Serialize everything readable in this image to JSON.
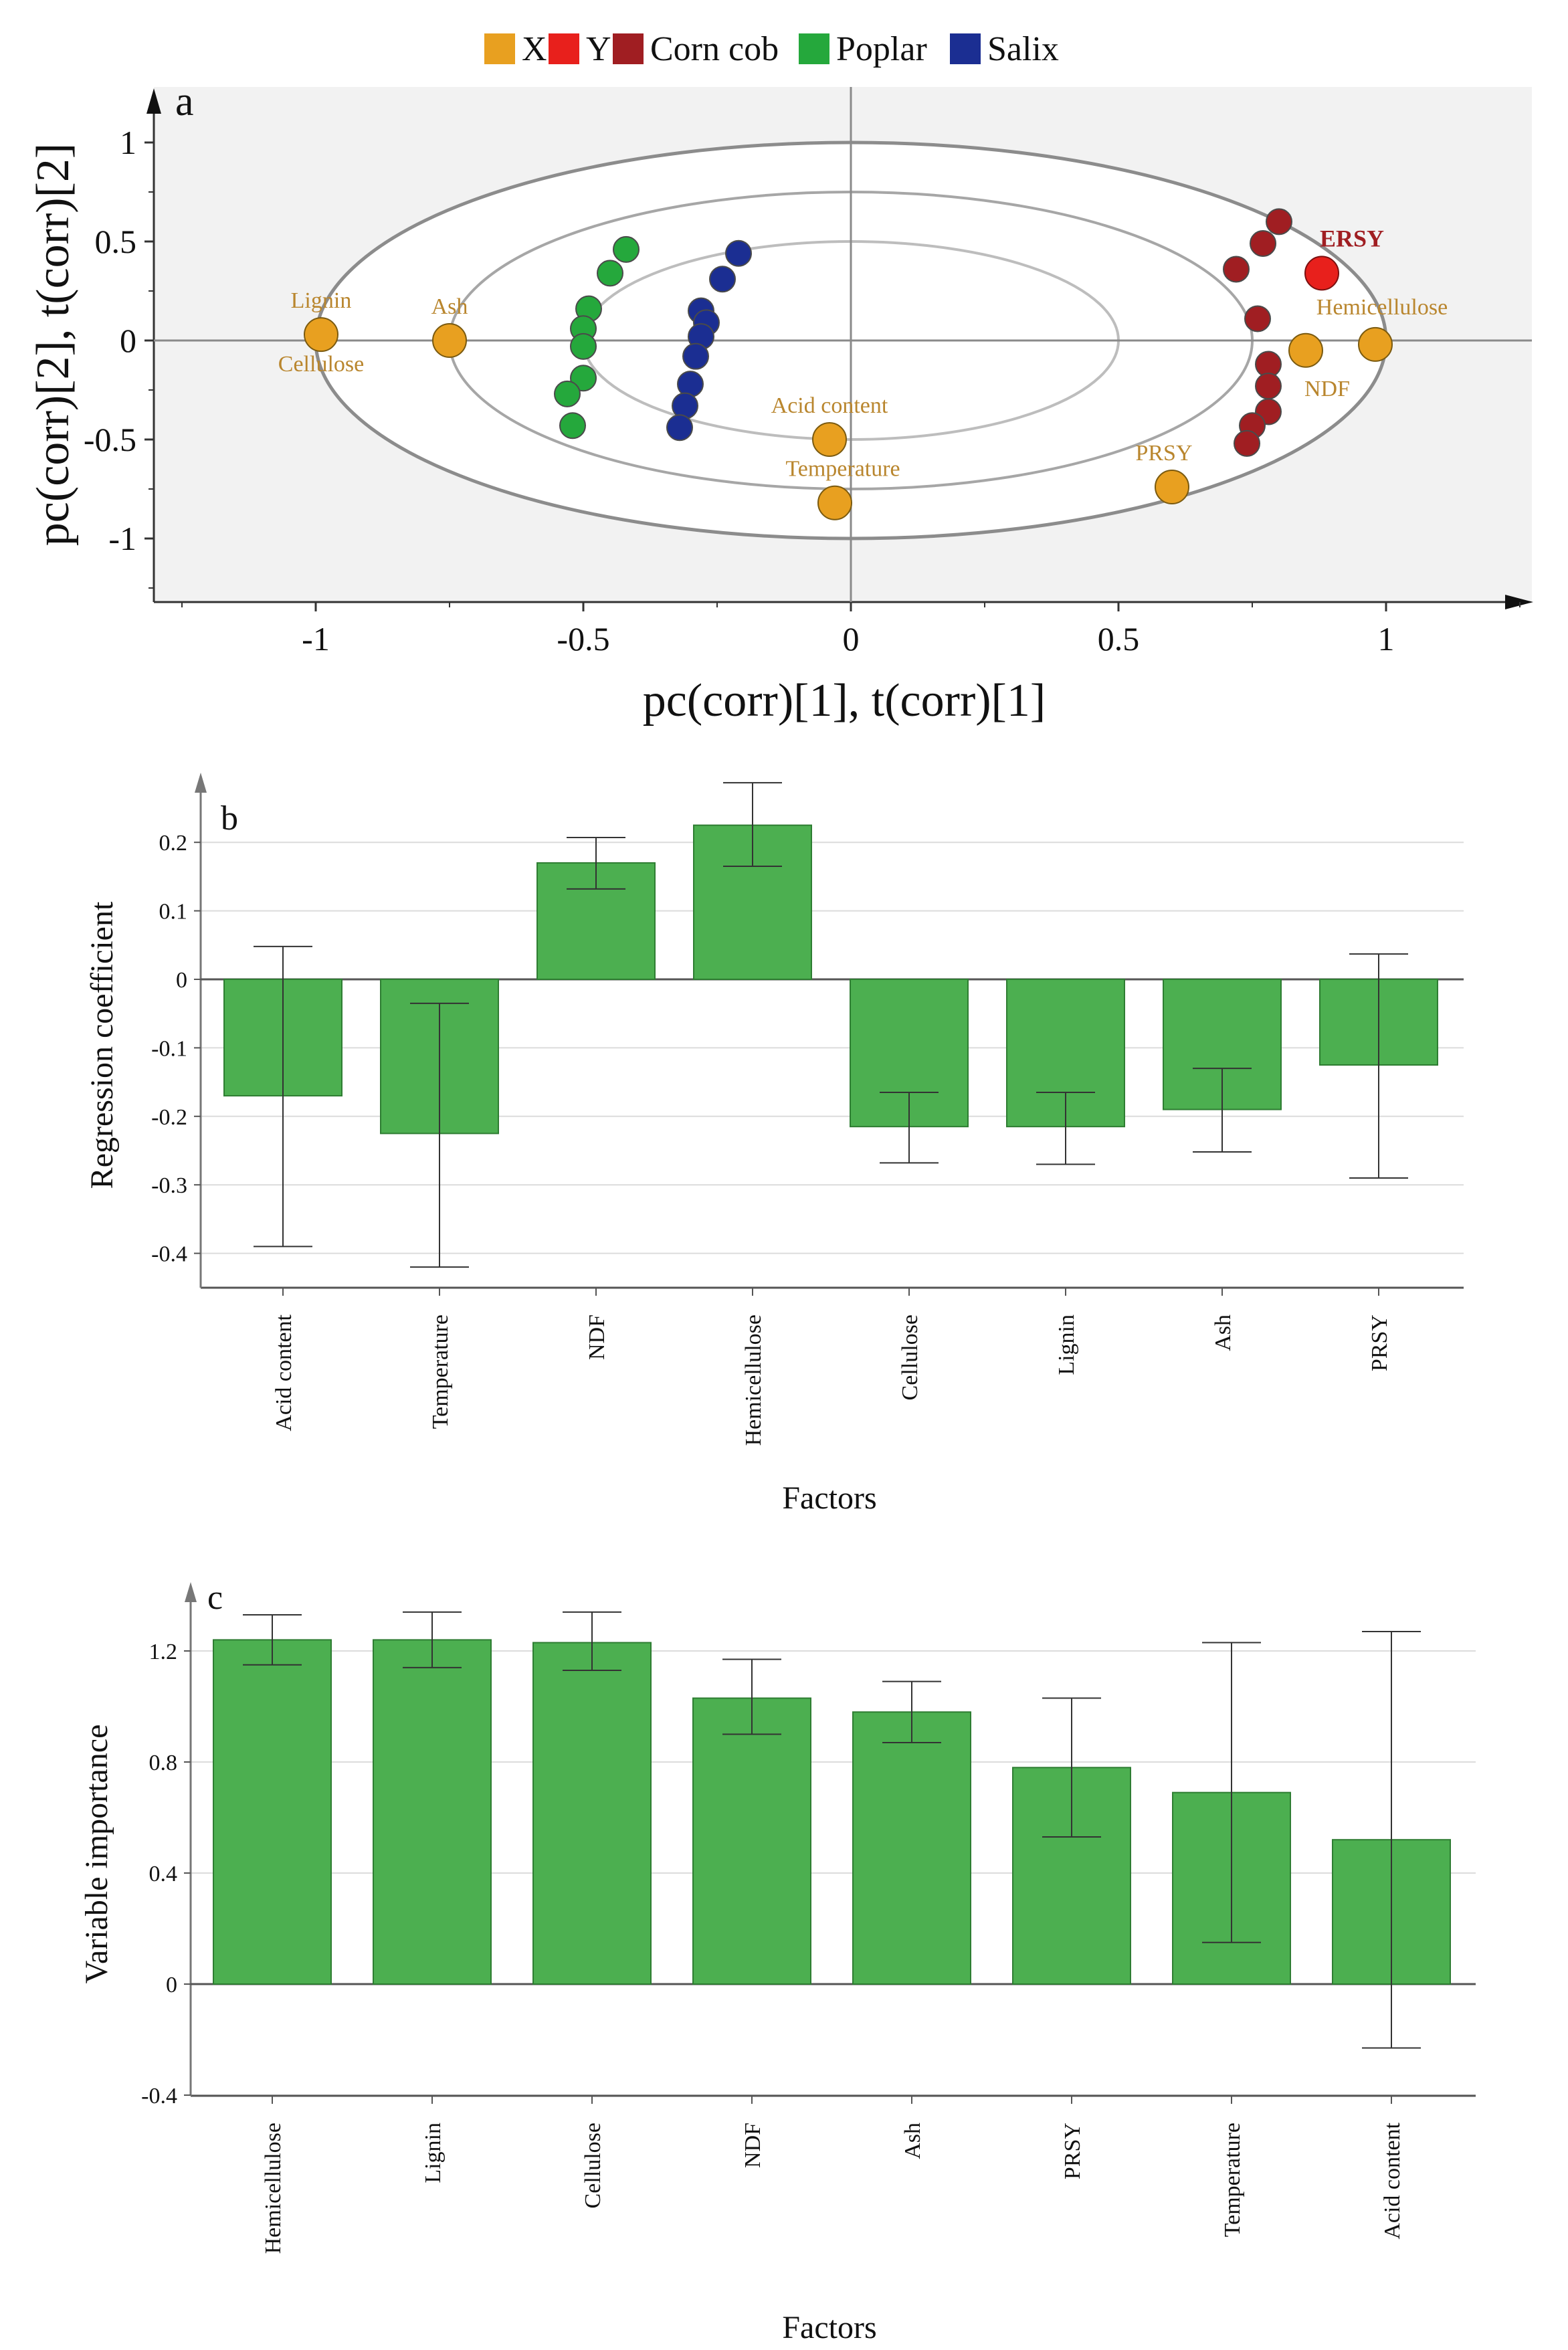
{
  "colors": {
    "X": "#E8A020",
    "Y": "#E8201C",
    "corn_cob": "#A01E22",
    "poplar": "#25A83C",
    "salix": "#1B2E92",
    "bar": "#4CAF50",
    "bar_edge": "#2E7D32",
    "label": "#B9862E",
    "ersy": "#A01E22",
    "panel_bg": "#F2F2F2"
  },
  "legend": [
    {
      "label": "X",
      "color_key": "X"
    },
    {
      "label": "Y",
      "color_key": "Y"
    },
    {
      "label": "Corn cob",
      "color_key": "corn_cob"
    },
    {
      "label": "Poplar",
      "color_key": "poplar"
    },
    {
      "label": "Salix",
      "color_key": "salix"
    }
  ],
  "chart_data": [
    {
      "type": "scatter",
      "panel_label": "a",
      "xlabel": "pc(corr)[1], t(corr)[1]",
      "ylabel": "pc(corr)[2], t(corr)[2]",
      "xlim": [
        -1.3,
        1.3
      ],
      "ylim": [
        -1.3,
        1.2
      ],
      "xticks": [
        -1,
        -0.5,
        0,
        0.5,
        1
      ],
      "xtick_labels": [
        "-1",
        "-0.5",
        "0",
        "0.5",
        "1"
      ],
      "yticks": [
        1,
        0.5,
        0,
        -0.5,
        -1
      ],
      "ytick_labels": [
        "1",
        "0.5",
        "0",
        "-0.5",
        "-1"
      ],
      "ellipses": [
        {
          "rx": 1.0,
          "ry": 1.0
        },
        {
          "rx": 0.75,
          "ry": 0.75
        },
        {
          "rx": 0.5,
          "ry": 0.5
        }
      ],
      "loadings": [
        {
          "name": "Lignin",
          "x": -0.99,
          "y": 0.03,
          "label": "Lignin",
          "label_pos": "above"
        },
        {
          "name": "Cellulose",
          "x": -0.99,
          "y": 0.03,
          "label": "Cellulose",
          "label_pos": "below"
        },
        {
          "name": "Ash",
          "x": -0.75,
          "y": 0.0,
          "label": "Ash",
          "label_pos": "above"
        },
        {
          "name": "Acid content",
          "x": -0.04,
          "y": -0.5,
          "label": "Acid content",
          "label_pos": "above"
        },
        {
          "name": "Temperature",
          "x": -0.03,
          "y": -0.82,
          "label": "Temperature",
          "label_pos": "above"
        },
        {
          "name": "PRSY",
          "x": 0.6,
          "y": -0.74,
          "label": "PRSY",
          "label_pos": "above-left"
        },
        {
          "name": "NDF",
          "x": 0.85,
          "y": -0.05,
          "label": "NDF",
          "label_pos": "below-right"
        },
        {
          "name": "Hemicellulose",
          "x": 0.98,
          "y": -0.02,
          "label": "Hemicellulose",
          "label_pos": "above"
        }
      ],
      "response": {
        "name": "ERSY",
        "x": 0.88,
        "y": 0.34,
        "label": "ERSY"
      },
      "series": [
        {
          "name": "Poplar",
          "color_key": "poplar",
          "points": [
            [
              -0.42,
              0.46
            ],
            [
              -0.45,
              0.34
            ],
            [
              -0.49,
              0.16
            ],
            [
              -0.5,
              0.06
            ],
            [
              -0.5,
              -0.03
            ],
            [
              -0.5,
              -0.19
            ],
            [
              -0.53,
              -0.27
            ],
            [
              -0.52,
              -0.43
            ]
          ]
        },
        {
          "name": "Salix",
          "color_key": "salix",
          "points": [
            [
              -0.21,
              0.44
            ],
            [
              -0.24,
              0.31
            ],
            [
              -0.28,
              0.15
            ],
            [
              -0.27,
              0.09
            ],
            [
              -0.28,
              0.02
            ],
            [
              -0.29,
              -0.08
            ],
            [
              -0.3,
              -0.22
            ],
            [
              -0.31,
              -0.33
            ],
            [
              -0.32,
              -0.44
            ]
          ]
        },
        {
          "name": "Corn cob",
          "color_key": "corn_cob",
          "points": [
            [
              0.8,
              0.6
            ],
            [
              0.77,
              0.49
            ],
            [
              0.72,
              0.36
            ],
            [
              0.76,
              0.11
            ],
            [
              0.78,
              -0.12
            ],
            [
              0.78,
              -0.23
            ],
            [
              0.78,
              -0.36
            ],
            [
              0.75,
              -0.43
            ],
            [
              0.74,
              -0.52
            ]
          ]
        }
      ]
    },
    {
      "type": "bar",
      "panel_label": "b",
      "xlabel": "Factors",
      "ylabel": "Regression coefficient",
      "categories": [
        "Acid content",
        "Temperature",
        "NDF",
        "Hemicellulose",
        "Cellulose",
        "Lignin",
        "Ash",
        "PRSY"
      ],
      "values": [
        -0.17,
        -0.225,
        0.17,
        0.225,
        -0.215,
        -0.215,
        -0.19,
        -0.125
      ],
      "error_low": [
        -0.39,
        -0.42,
        0.132,
        0.165,
        -0.268,
        -0.27,
        -0.252,
        -0.29
      ],
      "error_high": [
        0.048,
        -0.035,
        0.207,
        0.287,
        -0.165,
        -0.165,
        -0.13,
        0.037
      ],
      "ylim": [
        -0.45,
        0.3
      ],
      "yticks": [
        0.2,
        0.1,
        0,
        -0.1,
        -0.2,
        -0.3,
        -0.4
      ],
      "ytick_labels": [
        "0.2",
        "0.1",
        "0",
        "-0.1",
        "-0.2",
        "-0.3",
        "-0.4"
      ],
      "grid": true
    },
    {
      "type": "bar",
      "panel_label": "c",
      "xlabel": "Factors",
      "ylabel": "Variable importance",
      "categories": [
        "Hemicellulose",
        "Lignin",
        "Cellulose",
        "NDF",
        "Ash",
        "PRSY",
        "Temperature",
        "Acid content"
      ],
      "values": [
        1.24,
        1.24,
        1.23,
        1.03,
        0.98,
        0.78,
        0.69,
        0.52
      ],
      "error_low": [
        1.15,
        1.14,
        1.13,
        0.9,
        0.87,
        0.53,
        0.15,
        -0.23
      ],
      "error_high": [
        1.33,
        1.34,
        1.34,
        1.17,
        1.09,
        1.03,
        1.23,
        1.27
      ],
      "ylim": [
        -0.4,
        1.4
      ],
      "yticks": [
        1.2,
        0.8,
        0.4,
        0,
        -0.4
      ],
      "ytick_labels": [
        "1.2",
        "0.8",
        "0.4",
        "0",
        "-0.4"
      ],
      "grid": true
    }
  ]
}
